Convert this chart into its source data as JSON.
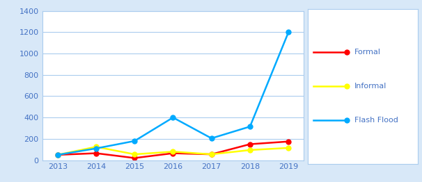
{
  "years": [
    2013,
    2014,
    2015,
    2016,
    2017,
    2018,
    2019
  ],
  "formal": [
    50,
    65,
    20,
    65,
    55,
    150,
    175
  ],
  "informal": [
    50,
    125,
    55,
    80,
    55,
    95,
    115
  ],
  "flash_flood": [
    50,
    110,
    180,
    400,
    205,
    315,
    1200
  ],
  "formal_color": "#FF0000",
  "informal_color": "#FFFF00",
  "flash_flood_color": "#00AAFF",
  "background_color": "#D8E8F8",
  "plot_bg_color": "#FFFFFF",
  "legend_bg_color": "#FFFFFF",
  "ylim": [
    0,
    1400
  ],
  "yticks": [
    0,
    200,
    400,
    600,
    800,
    1000,
    1200,
    1400
  ],
  "grid_color": "#AACCEE",
  "tick_label_color": "#4472C4",
  "legend_labels": [
    "Formal",
    "Informal",
    "Flash Flood"
  ],
  "marker": "o",
  "linewidth": 1.8,
  "markersize": 5
}
